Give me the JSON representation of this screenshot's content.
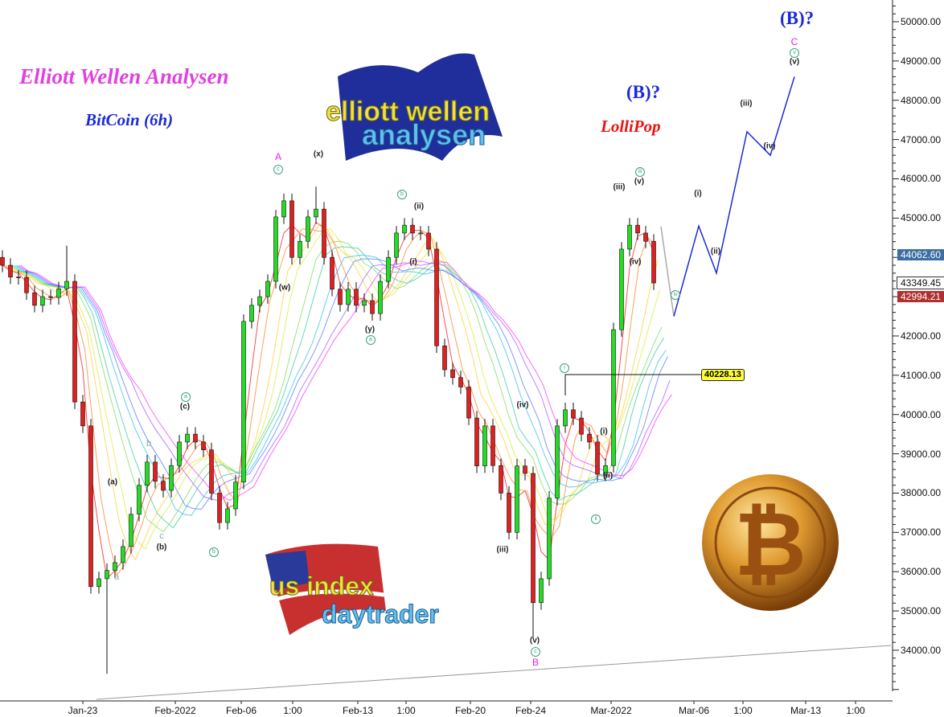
{
  "header": {
    "title": "Elliott Wellen Analysen",
    "subtitle": "BitCoin (6h)",
    "lollipop": "LolliPop",
    "wave_b_mid": "(B)?",
    "wave_b_top": "(B)?"
  },
  "logos": {
    "elliott": "elliott wellen analysen",
    "us": "us index daytrader",
    "bitcoin": "bitcoin coin"
  },
  "colors": {
    "bull": "#22dd22",
    "bear": "#e02020",
    "forecast": "#1a2ad8",
    "title": "#e040e0",
    "subtitle": "#1a2ad8",
    "lollipop": "#ee1111",
    "highlight": "#ffff33"
  },
  "chart_data": {
    "type": "candlestick",
    "title": "",
    "ylim": [
      33000,
      50500
    ],
    "y_ticks": [
      "50000.00",
      "49000.00",
      "48000.00",
      "47000.00",
      "46000.00",
      "45000.00",
      "42000.00",
      "41000.00",
      "40000.00",
      "39000.00",
      "38000.00",
      "37000.00",
      "36000.00",
      "35000.00",
      "34000.00"
    ],
    "x_ticks": [
      "Jan-23",
      "Feb-2022",
      "Feb-06",
      "1:00",
      "Feb-13",
      "1:00",
      "Feb-20",
      "Feb-24",
      "Mar-2022",
      "Mar-06",
      "1:00",
      "Mar-13",
      "1:00"
    ],
    "closes": [
      43800,
      43500,
      43490,
      43100,
      42780,
      43000,
      42980,
      43200,
      43390,
      40320,
      39710,
      35620,
      35820,
      36030,
      36230,
      36640,
      37460,
      38200,
      38790,
      38300,
      38070,
      38700,
      39300,
      39500,
      39300,
      39100,
      38000,
      37250,
      37600,
      38280,
      42370,
      42780,
      43000,
      43390,
      45030,
      45440,
      44000,
      44410,
      45030,
      45230,
      44000,
      43190,
      42800,
      43190,
      42780,
      42900,
      42570,
      43390,
      44000,
      44620,
      44820,
      44620,
      44620,
      44210,
      41750,
      41140,
      40940,
      40700,
      39910,
      38690,
      39710,
      38700,
      38000,
      37000,
      38690,
      38500,
      35210,
      35820,
      37870,
      39710,
      40120,
      39910,
      39500,
      39300,
      38480,
      38700,
      42160,
      44210,
      44820,
      44620,
      44410,
      43349.45
    ],
    "wick_extremes": [
      {
        "i": 8,
        "high": 44300
      },
      {
        "i": 13,
        "low": 33400
      },
      {
        "i": 39,
        "high": 45800
      },
      {
        "i": 66,
        "low": 34300
      },
      {
        "i": 78,
        "high": 45000
      }
    ],
    "moving_average_ribbon_colors": [
      "#ff2020",
      "#ff8a30",
      "#ffd040",
      "#d8f040",
      "#80e060",
      "#40d0a0",
      "#40c0f0",
      "#6080ff",
      "#b060ff",
      "#ff40ff"
    ],
    "price_tags": [
      {
        "value": "44062.60",
        "color": "#3a6ea5"
      },
      {
        "value": "43349.45",
        "color": "#ffffff"
      },
      {
        "value": "42994.21",
        "color": "#b03030"
      }
    ],
    "level_marker": "40228.13",
    "forecast_path": [
      43349,
      42500,
      44800,
      43600,
      47200,
      46600,
      48600
    ],
    "wave_labels": [
      {
        "t": "A",
        "s": "mag"
      },
      {
        "t": "c",
        "s": "circ"
      },
      {
        "t": "(x)",
        "s": ""
      },
      {
        "t": "(w)",
        "s": ""
      },
      {
        "t": "(y)",
        "s": ""
      },
      {
        "t": "a",
        "s": "circ"
      },
      {
        "t": "b",
        "s": "circ"
      },
      {
        "t": "(ii)",
        "s": ""
      },
      {
        "t": "(i)",
        "s": ""
      },
      {
        "t": "a",
        "s": "circ"
      },
      {
        "t": "(c)",
        "s": ""
      },
      {
        "t": "b",
        "s": "gray"
      },
      {
        "t": "(a)",
        "s": ""
      },
      {
        "t": "c",
        "s": "gray"
      },
      {
        "t": "(b)",
        "s": ""
      },
      {
        "t": "b",
        "s": "circ"
      },
      {
        "t": "a",
        "s": "gray"
      },
      {
        "t": "(iv)",
        "s": ""
      },
      {
        "t": "(iii)",
        "s": ""
      },
      {
        "t": "(v)",
        "s": ""
      },
      {
        "t": "c",
        "s": "circ"
      },
      {
        "t": "B",
        "s": "mag"
      },
      {
        "t": "i",
        "s": "circ"
      },
      {
        "t": "(i)",
        "s": ""
      },
      {
        "t": "(ii)",
        "s": ""
      },
      {
        "t": "ii",
        "s": "circ"
      },
      {
        "t": "(iii)",
        "s": ""
      },
      {
        "t": "(v)",
        "s": ""
      },
      {
        "t": "iii",
        "s": "circ"
      },
      {
        "t": "(iv)",
        "s": ""
      },
      {
        "t": "iv",
        "s": "circ"
      },
      {
        "t": "(i)",
        "s": ""
      },
      {
        "t": "(ii)",
        "s": ""
      },
      {
        "t": "(iii)",
        "s": ""
      },
      {
        "t": "(iv)",
        "s": ""
      },
      {
        "t": "(v)",
        "s": ""
      },
      {
        "t": "v",
        "s": "circ"
      },
      {
        "t": "C",
        "s": "mag"
      }
    ]
  }
}
